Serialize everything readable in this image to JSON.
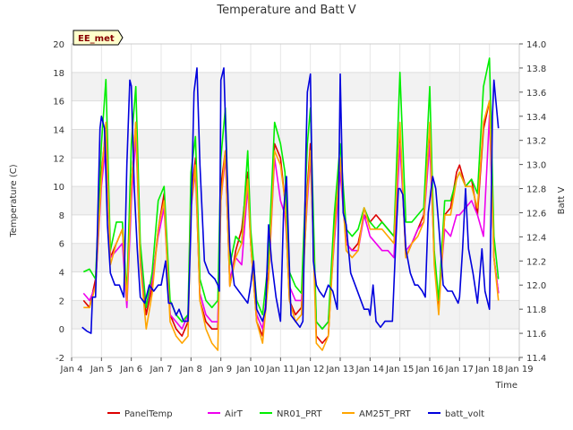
{
  "chart_data": {
    "type": "line",
    "title": "Temperature and Batt V",
    "xlabel": "Time",
    "ylabel": "Temperature (C)",
    "y2label": "Batt V",
    "station_label": "EE_met",
    "x_ticks": [
      "Jan 4",
      "Jan 5",
      "Jan 6",
      "Jan 7",
      "Jan 8",
      "Jan 9",
      "Jan 10",
      "Jan 11",
      "Jan 12",
      "Jan 13",
      "Jan 14",
      "Jan 15",
      "Jan 16",
      "Jan 17",
      "Jan 18",
      "Jan 19"
    ],
    "xlim": [
      4,
      19
    ],
    "ylim": [
      -2,
      20
    ],
    "y_ticks": [
      "-2",
      "0",
      "2",
      "4",
      "6",
      "8",
      "10",
      "12",
      "14",
      "16",
      "18",
      "20"
    ],
    "y2lim": [
      11.4,
      14.0
    ],
    "y2_ticks": [
      "11.4",
      "11.6",
      "11.8",
      "12.0",
      "12.2",
      "12.4",
      "12.6",
      "12.8",
      "13.0",
      "13.2",
      "13.4",
      "13.6",
      "13.8",
      "14.0"
    ],
    "grid": true,
    "legend_position": "bottom",
    "series": [
      {
        "name": "PanelTemp",
        "color": "#dd0000",
        "axis": "left",
        "x": [
          4.4,
          4.6,
          4.8,
          5.0,
          5.15,
          5.3,
          5.5,
          5.7,
          5.85,
          6.0,
          6.15,
          6.3,
          6.5,
          6.7,
          6.9,
          7.1,
          7.3,
          7.5,
          7.7,
          7.9,
          8.0,
          8.15,
          8.3,
          8.5,
          8.7,
          8.9,
          9.0,
          9.15,
          9.3,
          9.5,
          9.7,
          9.9,
          10.0,
          10.2,
          10.4,
          10.6,
          10.8,
          11.0,
          11.15,
          11.3,
          11.5,
          11.7,
          11.9,
          12.0,
          12.2,
          12.4,
          12.6,
          12.8,
          13.0,
          13.2,
          13.4,
          13.6,
          13.8,
          14.0,
          14.2,
          14.4,
          14.6,
          14.8,
          15.0,
          15.2,
          15.4,
          15.6,
          15.8,
          16.0,
          16.15,
          16.3,
          16.5,
          16.7,
          16.9,
          17.0,
          17.2,
          17.4,
          17.6,
          17.8,
          18.0,
          18.15,
          18.3
        ],
        "y": [
          2.0,
          1.5,
          3.5,
          11.0,
          14.0,
          5.0,
          6.0,
          7.0,
          2.0,
          10.0,
          14.5,
          5.0,
          1.0,
          3.0,
          7.0,
          9.5,
          1.0,
          0.0,
          -0.5,
          0.5,
          9.0,
          12.0,
          2.0,
          0.5,
          0.0,
          0.0,
          10.0,
          12.5,
          3.0,
          5.5,
          7.0,
          11.0,
          6.0,
          0.5,
          -0.5,
          4.0,
          13.0,
          12.0,
          9.0,
          2.0,
          1.0,
          1.5,
          10.0,
          13.0,
          -0.5,
          -1.0,
          -0.5,
          7.0,
          12.0,
          6.0,
          5.5,
          6.0,
          8.0,
          7.5,
          8.0,
          7.5,
          7.0,
          6.5,
          14.0,
          5.0,
          6.0,
          7.0,
          8.0,
          14.0,
          5.0,
          1.5,
          8.0,
          8.5,
          11.0,
          11.5,
          10.0,
          10.5,
          8.0,
          14.0,
          16.0,
          5.0,
          2.5
        ]
      },
      {
        "name": "AirT",
        "color": "#ee00ee",
        "axis": "left",
        "x": [
          4.4,
          4.6,
          4.8,
          5.0,
          5.15,
          5.3,
          5.5,
          5.7,
          5.85,
          6.0,
          6.15,
          6.3,
          6.5,
          6.7,
          6.9,
          7.1,
          7.3,
          7.5,
          7.7,
          7.9,
          8.0,
          8.15,
          8.3,
          8.5,
          8.7,
          8.9,
          9.0,
          9.15,
          9.3,
          9.5,
          9.7,
          9.9,
          10.0,
          10.2,
          10.4,
          10.6,
          10.8,
          11.0,
          11.15,
          11.3,
          11.5,
          11.7,
          11.9,
          12.0,
          12.2,
          12.4,
          12.6,
          12.8,
          13.0,
          13.2,
          13.4,
          13.6,
          13.8,
          14.0,
          14.2,
          14.4,
          14.6,
          14.8,
          15.0,
          15.2,
          15.4,
          15.6,
          15.8,
          16.0,
          16.15,
          16.3,
          16.5,
          16.7,
          16.9,
          17.0,
          17.2,
          17.4,
          17.6,
          17.8,
          18.0,
          18.15,
          18.3
        ],
        "y": [
          2.5,
          2.0,
          3.0,
          10.0,
          13.0,
          5.0,
          5.5,
          6.0,
          1.5,
          9.0,
          13.5,
          5.0,
          1.5,
          3.5,
          6.5,
          8.5,
          1.0,
          0.5,
          0.0,
          1.0,
          8.5,
          11.0,
          2.5,
          1.0,
          0.5,
          0.5,
          9.0,
          12.0,
          3.5,
          5.0,
          4.5,
          10.0,
          6.0,
          1.0,
          0.0,
          3.5,
          12.0,
          9.0,
          8.0,
          3.0,
          2.0,
          2.0,
          9.0,
          12.0,
          0.5,
          0.0,
          0.5,
          6.0,
          11.0,
          6.0,
          5.5,
          5.5,
          8.0,
          6.5,
          6.0,
          5.5,
          5.5,
          5.0,
          13.0,
          5.5,
          6.0,
          7.0,
          7.5,
          13.0,
          5.0,
          2.0,
          7.0,
          6.5,
          8.0,
          8.0,
          8.5,
          9.0,
          8.0,
          6.5,
          15.0,
          5.0,
          2.5
        ]
      },
      {
        "name": "NR01_PRT",
        "color": "#00ee00",
        "axis": "left",
        "x": [
          4.4,
          4.6,
          4.8,
          5.0,
          5.15,
          5.3,
          5.5,
          5.7,
          5.85,
          6.0,
          6.15,
          6.3,
          6.5,
          6.7,
          6.9,
          7.1,
          7.3,
          7.5,
          7.7,
          7.9,
          8.0,
          8.15,
          8.3,
          8.5,
          8.7,
          8.9,
          9.0,
          9.15,
          9.3,
          9.5,
          9.7,
          9.9,
          10.0,
          10.2,
          10.4,
          10.6,
          10.8,
          11.0,
          11.15,
          11.3,
          11.5,
          11.7,
          11.9,
          12.0,
          12.2,
          12.4,
          12.6,
          12.8,
          13.0,
          13.2,
          13.4,
          13.6,
          13.8,
          14.0,
          14.2,
          14.4,
          14.6,
          14.8,
          15.0,
          15.2,
          15.4,
          15.6,
          15.8,
          16.0,
          16.15,
          16.3,
          16.5,
          16.7,
          16.9,
          17.0,
          17.2,
          17.4,
          17.6,
          17.8,
          18.0,
          18.15,
          18.3
        ],
        "y": [
          4.0,
          4.2,
          3.5,
          13.0,
          17.5,
          5.5,
          7.5,
          7.5,
          2.5,
          13.0,
          17.0,
          6.0,
          1.5,
          4.0,
          9.0,
          10.0,
          2.0,
          1.0,
          0.5,
          1.0,
          11.0,
          13.5,
          3.5,
          2.0,
          1.5,
          2.0,
          12.0,
          15.5,
          4.5,
          6.5,
          6.0,
          12.5,
          7.0,
          2.0,
          1.0,
          5.0,
          14.5,
          13.0,
          11.0,
          4.0,
          3.0,
          2.5,
          13.0,
          15.5,
          0.5,
          0.0,
          0.5,
          8.0,
          13.0,
          7.0,
          6.5,
          7.0,
          8.5,
          7.5,
          7.0,
          7.5,
          7.0,
          6.5,
          18.0,
          7.5,
          7.5,
          8.0,
          8.5,
          17.0,
          5.5,
          2.0,
          9.0,
          9.0,
          10.5,
          11.0,
          10.0,
          10.5,
          9.5,
          17.0,
          19.0,
          6.5,
          3.5
        ]
      },
      {
        "name": "AM25T_PRT",
        "color": "#ffa500",
        "axis": "left",
        "x": [
          4.4,
          4.6,
          4.8,
          5.0,
          5.15,
          5.3,
          5.5,
          5.7,
          5.85,
          6.0,
          6.15,
          6.3,
          6.5,
          6.7,
          6.9,
          7.1,
          7.3,
          7.5,
          7.7,
          7.9,
          8.0,
          8.15,
          8.3,
          8.5,
          8.7,
          8.9,
          9.0,
          9.15,
          9.3,
          9.5,
          9.7,
          9.9,
          10.0,
          10.2,
          10.4,
          10.6,
          10.8,
          11.0,
          11.15,
          11.3,
          11.5,
          11.7,
          11.9,
          12.0,
          12.2,
          12.4,
          12.6,
          12.8,
          13.0,
          13.2,
          13.4,
          13.6,
          13.8,
          14.0,
          14.2,
          14.4,
          14.6,
          14.8,
          15.0,
          15.2,
          15.4,
          15.6,
          15.8,
          16.0,
          16.15,
          16.3,
          16.5,
          16.7,
          16.9,
          17.0,
          17.2,
          17.4,
          17.6,
          17.8,
          18.0,
          18.15,
          18.3
        ],
        "y": [
          1.5,
          1.5,
          3.0,
          10.5,
          14.5,
          4.5,
          6.0,
          7.0,
          2.0,
          10.0,
          14.5,
          4.5,
          0.0,
          2.5,
          7.0,
          9.0,
          0.5,
          -0.5,
          -1.0,
          -0.5,
          8.5,
          11.5,
          2.0,
          0.0,
          -1.0,
          -1.5,
          9.0,
          12.5,
          3.0,
          5.0,
          6.0,
          10.5,
          6.0,
          0.5,
          -1.0,
          3.5,
          12.5,
          11.5,
          9.0,
          2.0,
          0.5,
          1.0,
          9.5,
          12.5,
          -1.0,
          -1.5,
          -0.5,
          6.5,
          12.0,
          5.5,
          5.0,
          5.5,
          8.5,
          7.0,
          7.0,
          7.0,
          6.5,
          6.0,
          14.5,
          5.0,
          6.0,
          6.5,
          7.5,
          14.5,
          4.5,
          1.0,
          8.0,
          8.0,
          10.5,
          11.0,
          10.0,
          10.0,
          8.5,
          14.5,
          16.0,
          5.0,
          2.0
        ]
      },
      {
        "name": "batt_volt",
        "color": "#0000dd",
        "axis": "right",
        "x": [
          4.35,
          4.5,
          4.65,
          4.7,
          4.8,
          4.85,
          4.95,
          5.0,
          5.1,
          5.2,
          5.3,
          5.45,
          5.6,
          5.75,
          5.85,
          5.95,
          6.0,
          6.1,
          6.2,
          6.3,
          6.45,
          6.6,
          6.75,
          6.9,
          7.0,
          7.15,
          7.25,
          7.35,
          7.5,
          7.6,
          7.75,
          7.85,
          7.9,
          8.0,
          8.1,
          8.2,
          8.3,
          8.45,
          8.6,
          8.8,
          8.9,
          8.95,
          9.0,
          9.1,
          9.2,
          9.3,
          9.45,
          9.6,
          9.75,
          9.9,
          10.0,
          10.1,
          10.2,
          10.3,
          10.4,
          10.5,
          10.6,
          10.7,
          10.85,
          11.0,
          11.1,
          11.2,
          11.35,
          11.5,
          11.65,
          11.75,
          11.85,
          11.9,
          12.0,
          12.1,
          12.2,
          12.3,
          12.45,
          12.6,
          12.75,
          12.9,
          13.0,
          13.1,
          13.2,
          13.35,
          13.5,
          13.65,
          13.8,
          13.95,
          14.0,
          14.1,
          14.2,
          14.35,
          14.5,
          14.6,
          14.75,
          14.85,
          14.95,
          15.0,
          15.1,
          15.2,
          15.35,
          15.5,
          15.6,
          15.75,
          15.85,
          15.95,
          16.0,
          16.1,
          16.2,
          16.3,
          16.45,
          16.6,
          16.75,
          16.85,
          16.95,
          17.0,
          17.1,
          17.2,
          17.3,
          17.45,
          17.6,
          17.75,
          17.85,
          17.95,
          18.0,
          18.05,
          18.1,
          18.15,
          18.3
        ],
        "y": [
          11.65,
          11.62,
          11.6,
          11.9,
          11.9,
          12.3,
          13.3,
          13.4,
          13.3,
          12.5,
          12.1,
          12.0,
          12.0,
          11.9,
          13.0,
          13.7,
          13.65,
          12.8,
          12.3,
          11.9,
          11.85,
          12.0,
          11.95,
          12.0,
          12.0,
          12.2,
          11.85,
          11.85,
          11.75,
          11.8,
          11.7,
          11.7,
          11.7,
          12.5,
          13.6,
          13.8,
          13.0,
          12.2,
          12.1,
          12.05,
          12.0,
          11.95,
          13.7,
          13.8,
          13.0,
          12.3,
          12.0,
          11.95,
          11.9,
          11.85,
          12.0,
          12.2,
          11.8,
          11.75,
          11.7,
          11.8,
          12.5,
          12.2,
          11.9,
          11.7,
          12.6,
          12.9,
          11.75,
          11.7,
          11.65,
          11.7,
          13.1,
          13.6,
          13.75,
          12.2,
          12.0,
          11.95,
          11.9,
          12.0,
          11.95,
          11.8,
          13.75,
          12.6,
          12.5,
          12.1,
          12.0,
          11.9,
          11.8,
          11.8,
          11.75,
          12.0,
          11.7,
          11.65,
          11.7,
          11.7,
          11.7,
          12.3,
          12.8,
          12.8,
          12.75,
          12.3,
          12.1,
          12.0,
          12.0,
          11.95,
          11.9,
          12.6,
          12.7,
          12.9,
          12.8,
          12.5,
          12.0,
          11.95,
          11.95,
          11.9,
          11.85,
          11.9,
          12.3,
          12.8,
          12.3,
          12.1,
          11.85,
          12.3,
          11.95,
          11.85,
          11.8,
          12.5,
          13.4,
          13.7,
          13.3
        ]
      }
    ]
  }
}
